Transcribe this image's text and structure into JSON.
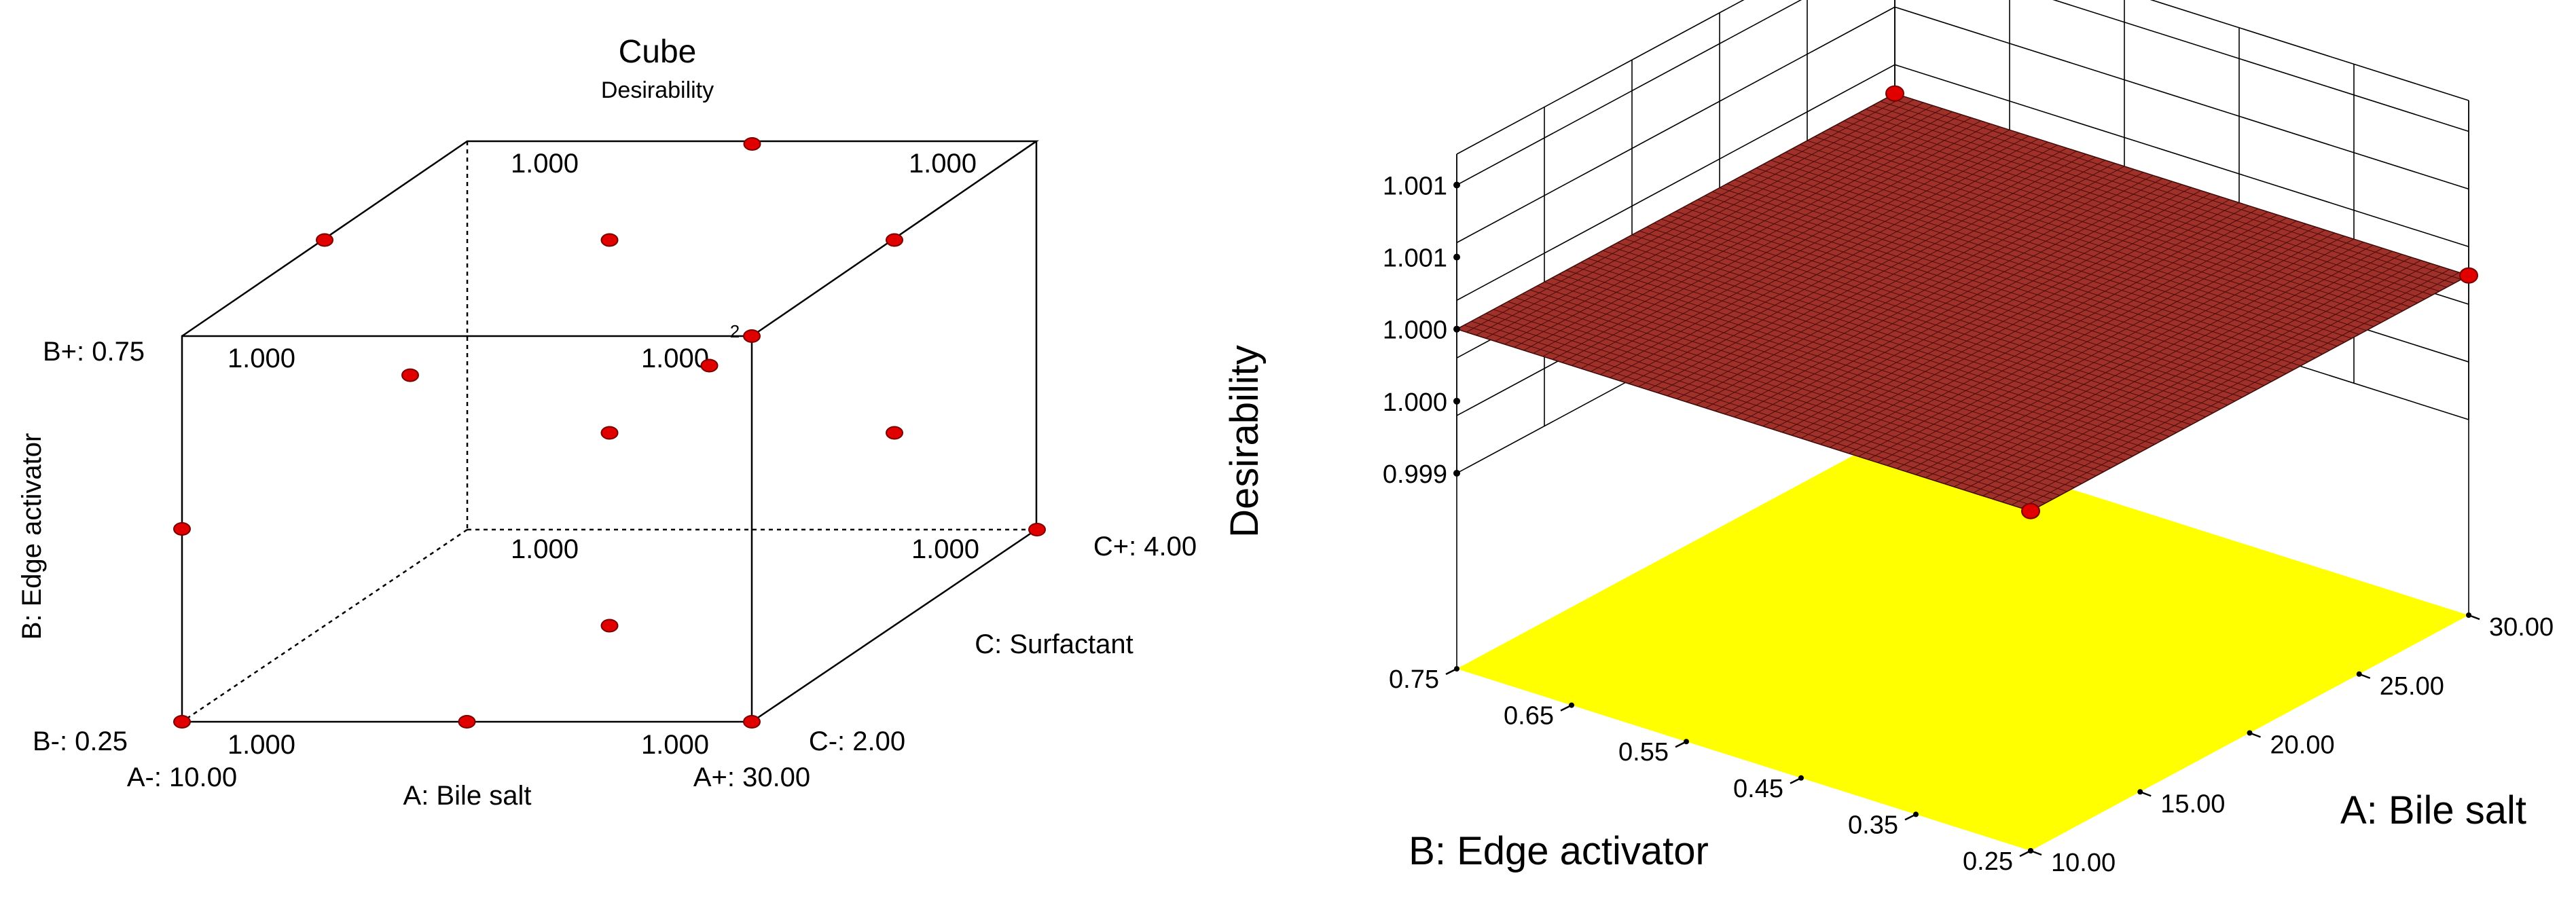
{
  "chart_data": [
    {
      "type": "cube",
      "title": "Cube",
      "subtitle": "Desirability",
      "axes": {
        "A": {
          "name": "A: Bile salt",
          "low_label": "A-: 10.00",
          "high_label": "A+: 30.00",
          "range": [
            10,
            30
          ]
        },
        "B": {
          "name": "B: Edge activator",
          "low_label": "B-: 0.25",
          "high_label": "B+: 0.75",
          "range": [
            0.25,
            0.75
          ]
        },
        "C": {
          "name": "C: Surfactant",
          "low_label": "C-: 2.00",
          "high_label": "C+: 4.00",
          "range": [
            2,
            4
          ]
        }
      },
      "corners": [
        {
          "A": "-",
          "B": "-",
          "C": "-",
          "value": "1.000"
        },
        {
          "A": "+",
          "B": "-",
          "C": "-",
          "value": "1.000"
        },
        {
          "A": "-",
          "B": "+",
          "C": "-",
          "value": "1.000"
        },
        {
          "A": "+",
          "B": "+",
          "C": "-",
          "value": "1.000"
        },
        {
          "A": "-",
          "B": "-",
          "C": "+",
          "value": "1.000"
        },
        {
          "A": "+",
          "B": "-",
          "C": "+",
          "value": "1.000"
        },
        {
          "A": "-",
          "B": "+",
          "C": "+",
          "value": "1.000"
        },
        {
          "A": "+",
          "B": "+",
          "C": "+",
          "value": "1.000"
        }
      ],
      "replicate_note": "2",
      "design_points": [
        {
          "A": 10,
          "B": 0.25,
          "C": 2
        },
        {
          "A": 30,
          "B": 0.25,
          "C": 2
        },
        {
          "A": 30,
          "B": 0.75,
          "C": 2
        },
        {
          "A": 30,
          "B": 0.25,
          "C": 4
        },
        {
          "A": 20,
          "B": 0.75,
          "C": 4
        },
        {
          "A": 10,
          "B": 0.75,
          "C": 3
        },
        {
          "A": 20,
          "B": 0.5,
          "C": 3
        },
        {
          "A": 20,
          "B": 0.25,
          "C": 3
        },
        {
          "A": 20,
          "B": 0.5,
          "C": 3.7
        },
        {
          "A": 20,
          "B": 0.75,
          "C": 3
        },
        {
          "A": 10,
          "B": 0.5,
          "C": 2
        },
        {
          "A": 20,
          "B": 0.25,
          "C": 2
        },
        {
          "A": 30,
          "B": 0.5,
          "C": 3
        },
        {
          "A": 10,
          "B": 0.5,
          "C": 3.6
        },
        {
          "A": 30,
          "B": 0.75,
          "C": 3
        }
      ]
    },
    {
      "type": "surface3d",
      "zlabel": "Desirability",
      "xlabel": "A: Bile salt",
      "ylabel": "B: Edge activator",
      "x_ticks": [
        "10.00",
        "15.00",
        "20.00",
        "25.00",
        "30.00"
      ],
      "y_ticks": [
        "0.25",
        "0.35",
        "0.45",
        "0.55",
        "0.65",
        "0.75"
      ],
      "z_ticks": [
        "0.999",
        "1.000",
        "1.000",
        "1.001",
        "1.001"
      ],
      "xlim": [
        10,
        30
      ],
      "ylim": [
        0.25,
        0.75
      ],
      "zlim": [
        0.999,
        1.001
      ],
      "surface_value": 1.0,
      "surface_color": "#a0302a",
      "floor_color": "#ffff00",
      "design_points": [
        {
          "A": 30,
          "B": 0.75,
          "z": 1.0
        },
        {
          "A": 10,
          "B": 0.25,
          "z": 1.0
        },
        {
          "A": 30,
          "B": 0.25,
          "z": 1.0
        }
      ]
    }
  ]
}
